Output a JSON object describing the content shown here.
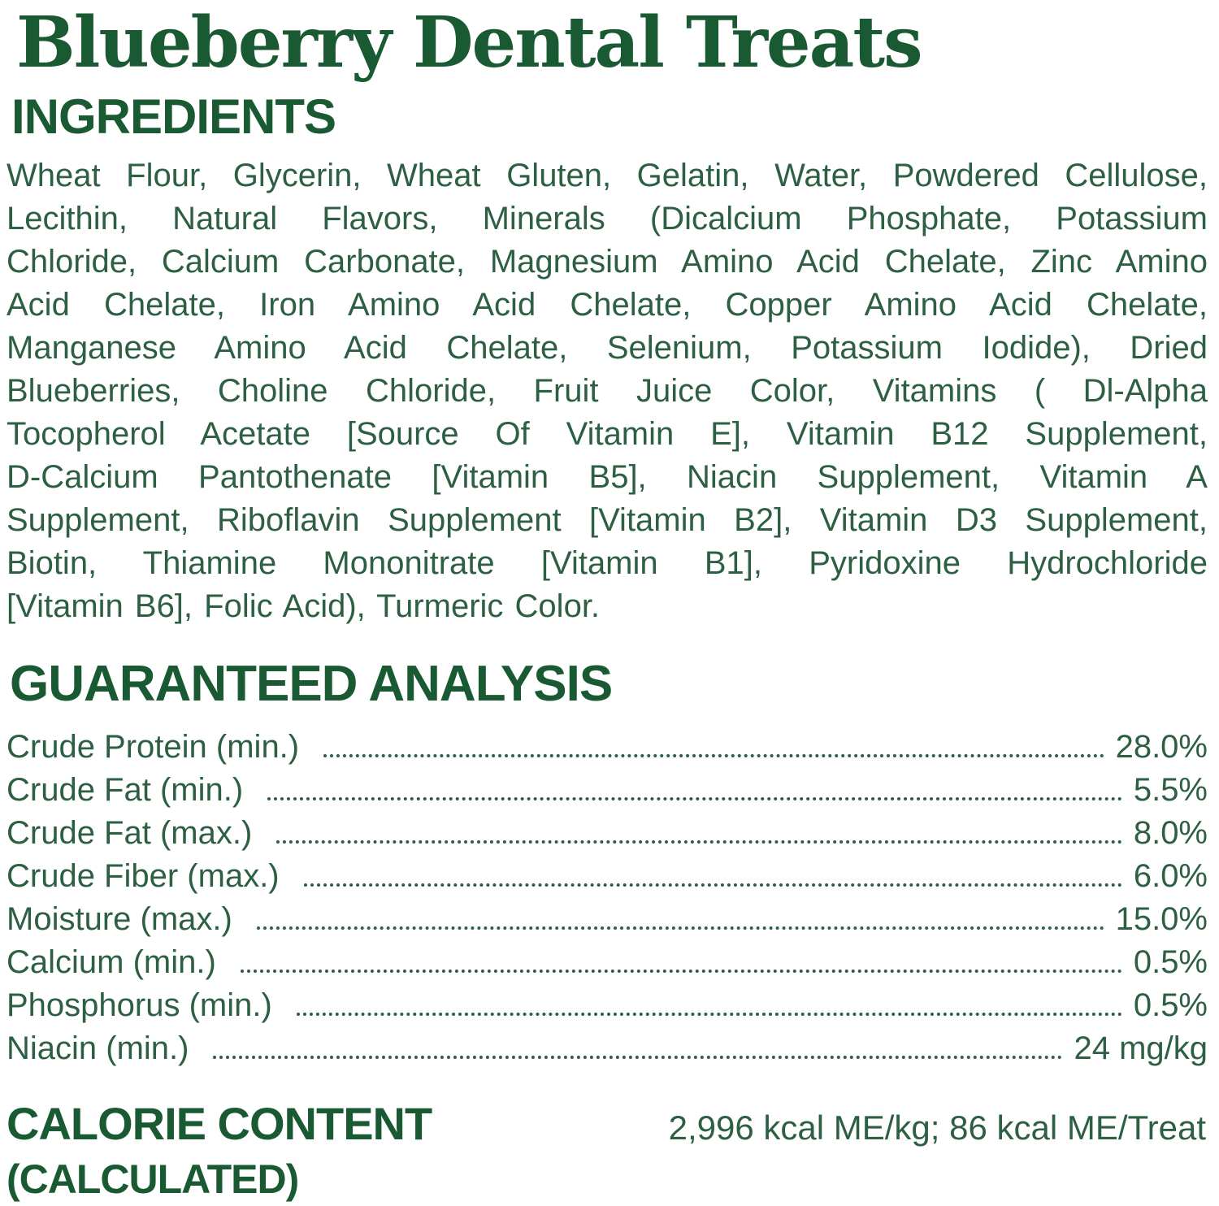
{
  "title": "Blueberry Dental Treats",
  "colors": {
    "heading_green": "#1a5a33",
    "body_green": "#2d5f43"
  },
  "ingredients": {
    "heading": "INGREDIENTS",
    "lines": [
      "Wheat Flour, Glycerin, Wheat Gluten, Gelatin, Water, Powdered Cellulose,",
      "Lecithin, Natural Flavors, Minerals (Dicalcium Phosphate, Potassium",
      "Chloride, Calcium Carbonate, Magnesium Amino Acid Chelate, Zinc Amino",
      "Acid Chelate, Iron Amino Acid Chelate, Copper Amino Acid Chelate,",
      "Manganese Amino Acid Chelate, Selenium, Potassium Iodide), Dried",
      "Blueberries, Choline Chloride, Fruit Juice Color, Vitamins ( Dl-Alpha",
      "Tocopherol Acetate [Source Of Vitamin E], Vitamin B12 Supplement,",
      "D-Calcium Pantothenate [Vitamin B5], Niacin Supplement, Vitamin A",
      "Supplement, Riboflavin Supplement [Vitamin B2], Vitamin D3 Supplement,",
      "Biotin, Thiamine Mononitrate [Vitamin B1], Pyridoxine Hydrochloride",
      "[Vitamin B6], Folic Acid), Turmeric Color."
    ]
  },
  "analysis": {
    "heading": "GUARANTEED ANALYSIS",
    "rows": [
      {
        "label": "Crude Protein (min.)",
        "value": "28.0%"
      },
      {
        "label": "Crude Fat (min.)",
        "value": "5.5%"
      },
      {
        "label": "Crude Fat (max.)",
        "value": "8.0%"
      },
      {
        "label": "Crude Fiber (max.)",
        "value": "6.0%"
      },
      {
        "label": "Moisture (max.)",
        "value": "15.0%"
      },
      {
        "label": "Calcium (min.)",
        "value": "0.5%"
      },
      {
        "label": "Phosphorus (min.)",
        "value": "0.5%"
      },
      {
        "label": "Niacin (min.)",
        "value": "24 mg/kg"
      }
    ]
  },
  "calorie": {
    "heading_line1": "CALORIE CONTENT",
    "heading_line2": "(CALCULATED)",
    "value": "2,996 kcal ME/kg; 86 kcal ME/Treat"
  }
}
